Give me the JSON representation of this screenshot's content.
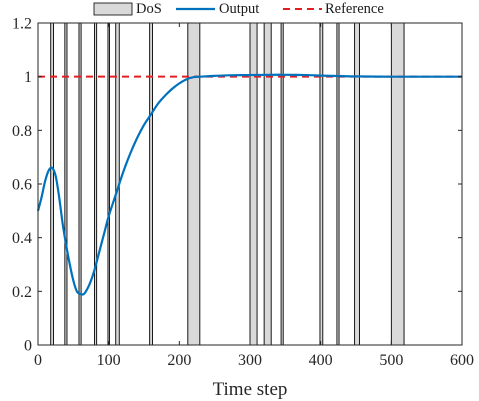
{
  "chart_data": {
    "type": "line",
    "title": "",
    "xlabel": "Time step",
    "ylabel": "",
    "xlim": [
      0,
      600
    ],
    "ylim": [
      0,
      1.2
    ],
    "xticks": [
      0,
      100,
      200,
      300,
      400,
      500,
      600
    ],
    "yticks": [
      0,
      0.2,
      0.4,
      0.6,
      0.8,
      1,
      1.2
    ],
    "ytick_labels": [
      "0",
      "0.2",
      "0.4",
      "0.6",
      "0.8",
      "1",
      "1.2"
    ],
    "grid": false,
    "legend": {
      "position": "top",
      "orientation": "horizontal"
    },
    "dos_intervals": [
      [
        18,
        22
      ],
      [
        38,
        41
      ],
      [
        58,
        61
      ],
      [
        80,
        83
      ],
      [
        99,
        101
      ],
      [
        110,
        115
      ],
      [
        158,
        162
      ],
      [
        212,
        229
      ],
      [
        300,
        310
      ],
      [
        320,
        330
      ],
      [
        344,
        347
      ],
      [
        399,
        403
      ],
      [
        423,
        426
      ],
      [
        448,
        455
      ],
      [
        500,
        518
      ]
    ],
    "series": [
      {
        "name": "DoS",
        "kind": "shaded-interval",
        "color": "#d9d9d9",
        "edge_color": "#000000"
      },
      {
        "name": "Output",
        "kind": "line",
        "color": "#0072BD",
        "x": [
          0,
          5,
          10,
          15,
          20,
          25,
          30,
          35,
          40,
          45,
          50,
          55,
          60,
          65,
          70,
          75,
          80,
          85,
          90,
          95,
          100,
          110,
          120,
          130,
          140,
          150,
          160,
          170,
          180,
          190,
          200,
          210,
          220,
          230,
          250,
          270,
          300,
          330,
          350,
          380,
          400,
          430,
          450,
          500,
          550,
          600
        ],
        "y": [
          0.5,
          0.55,
          0.61,
          0.65,
          0.66,
          0.63,
          0.55,
          0.45,
          0.37,
          0.3,
          0.24,
          0.2,
          0.19,
          0.19,
          0.21,
          0.24,
          0.28,
          0.33,
          0.38,
          0.43,
          0.48,
          0.56,
          0.64,
          0.71,
          0.77,
          0.82,
          0.86,
          0.9,
          0.93,
          0.955,
          0.975,
          0.99,
          0.998,
          1.0,
          1.003,
          1.005,
          1.006,
          1.007,
          1.007,
          1.006,
          1.004,
          1.002,
          1.001,
          1.0,
          1.0,
          1.0
        ]
      },
      {
        "name": "Reference",
        "kind": "line",
        "style": "dashed",
        "color": "#E02020",
        "x": [
          0,
          600
        ],
        "y": [
          1,
          1
        ]
      }
    ]
  }
}
